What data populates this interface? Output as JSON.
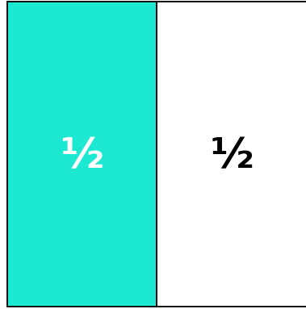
{
  "diagram": {
    "parts": [
      {
        "label": "½",
        "shaded": true,
        "fill_color": "#1DE9D2",
        "text_color": "#FFFFFF"
      },
      {
        "label": "½",
        "shaded": false,
        "fill_color": "#FFFFFF",
        "text_color": "#000000"
      }
    ],
    "border_color": "#111111"
  }
}
